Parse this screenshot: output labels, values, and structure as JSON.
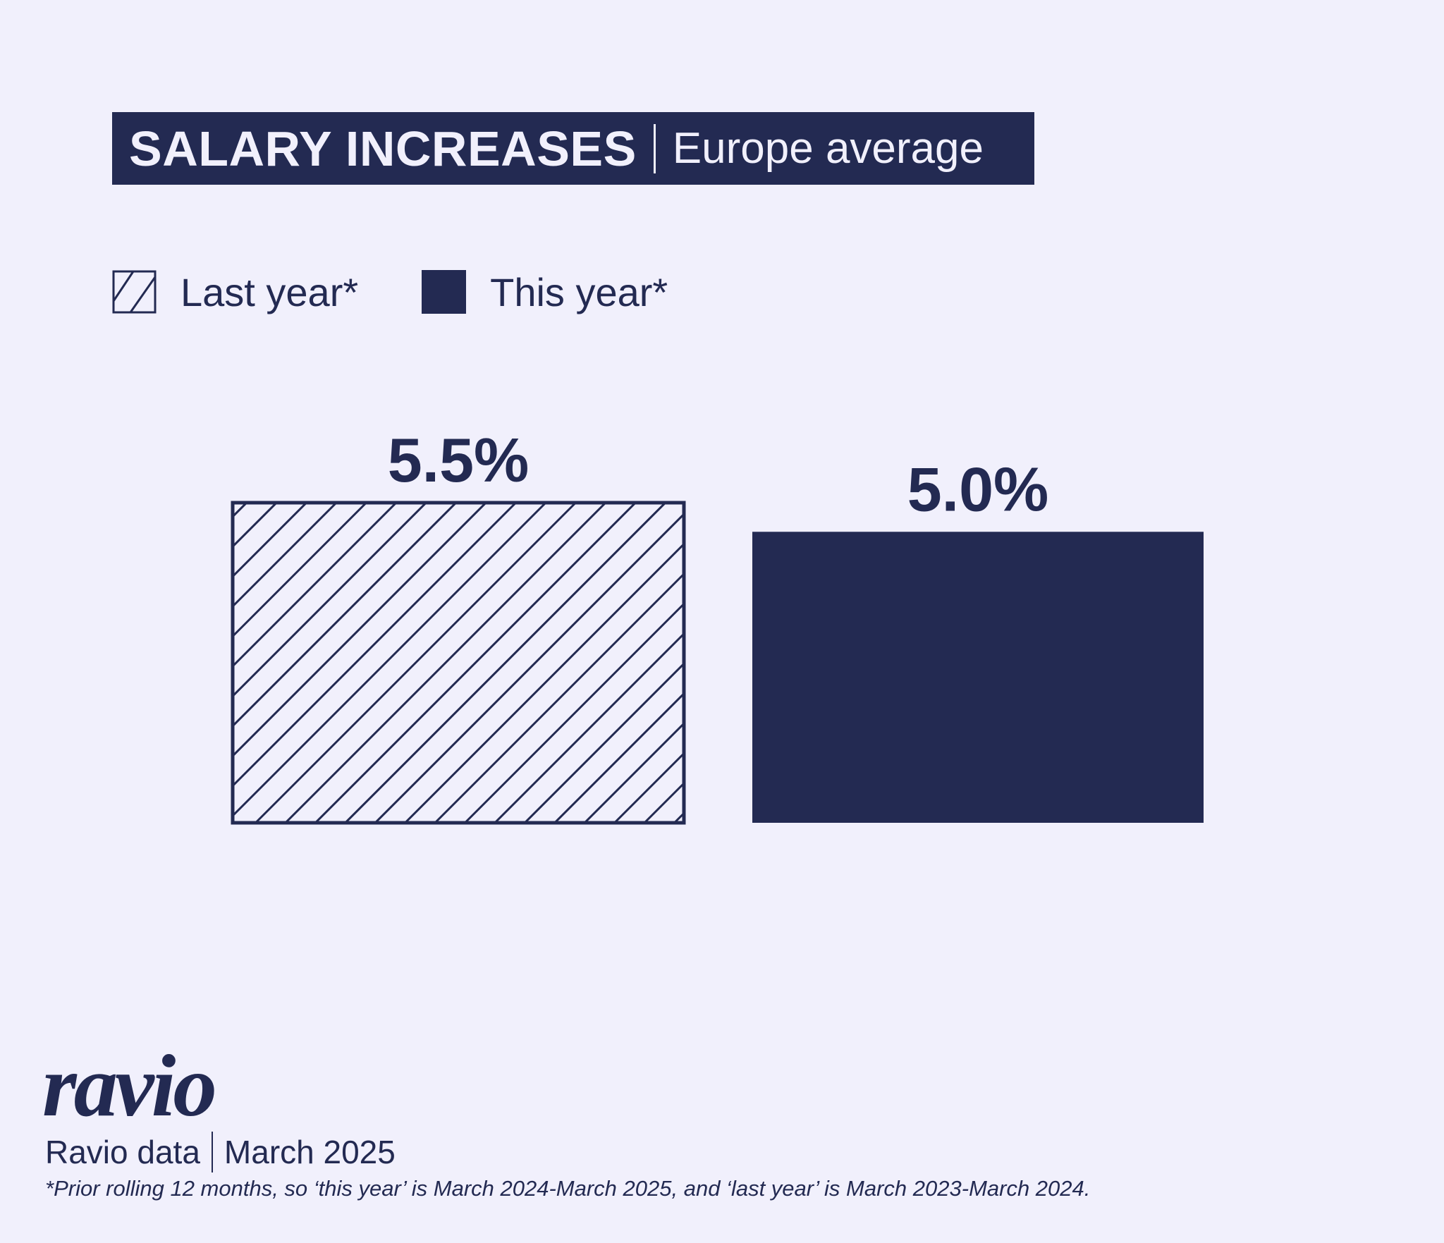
{
  "header": {
    "title": "SALARY INCREASES",
    "subtitle": "Europe average"
  },
  "colors": {
    "navy": "#232a52",
    "background": "#f1f0fc"
  },
  "chart_data": {
    "type": "bar",
    "title": "SALARY INCREASES",
    "subtitle": "Europe average",
    "categories": [
      "Last year*",
      "This year*"
    ],
    "values": [
      5.5,
      5.0
    ],
    "data_labels": [
      "5.5%",
      "5.0%"
    ],
    "series_styles": [
      "hatched",
      "solid"
    ],
    "legend": {
      "placement": "top-left",
      "entries": [
        "Last year*",
        "This year*"
      ]
    },
    "grid": false,
    "axes_visible": false,
    "ylim": [
      0,
      5.5
    ]
  },
  "footer": {
    "logo": "ravio",
    "source": "Ravio data",
    "date": "March 2025",
    "footnote": "*Prior rolling 12 months, so ‘this year’ is March 2024-March 2025, and ‘last year’ is March 2023-March 2024."
  }
}
